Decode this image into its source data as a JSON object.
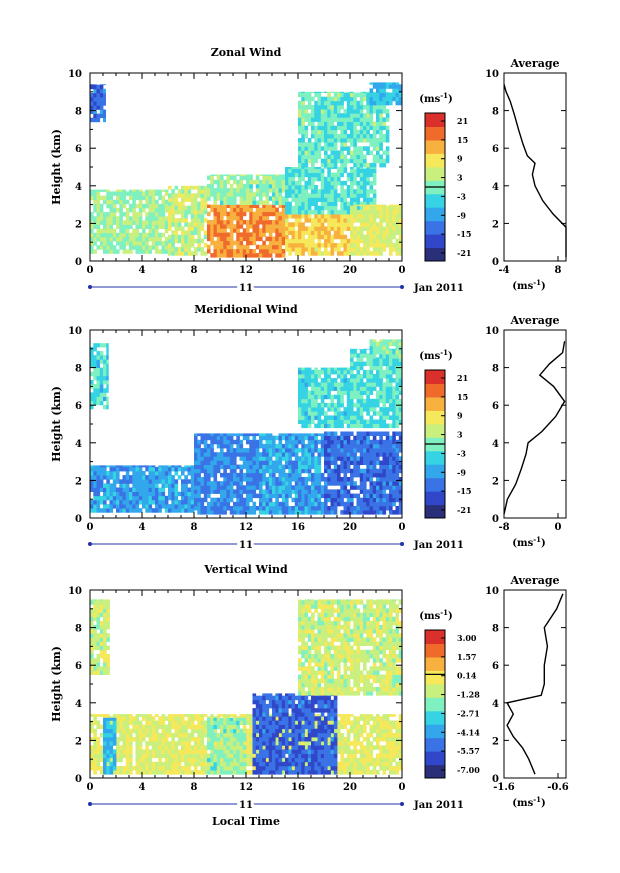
{
  "colors": {
    "scale": [
      "#2a2f7a",
      "#2f47c8",
      "#3a73e6",
      "#33a7ec",
      "#35d3e3",
      "#7ff0c0",
      "#c9f07e",
      "#f5e85a",
      "#f8b03e",
      "#f06a2c",
      "#d9302b"
    ]
  },
  "panels": [
    {
      "title": "Zonal Wind",
      "ylabel": "Height (km)",
      "date_label": "Jan 2011",
      "day_label": "11",
      "x_ticks": [
        "0",
        "4",
        "8",
        "12",
        "16",
        "20",
        "0"
      ],
      "y_ticks": [
        "0",
        "2",
        "4",
        "6",
        "8",
        "10"
      ],
      "colorbar": {
        "unit": "(ms",
        "unit_exp": "-1",
        "unit_close": ")",
        "labels": [
          "21",
          "15",
          "9",
          "3",
          "-3",
          "-9",
          "-15",
          "-21"
        ]
      },
      "average": {
        "title": "Average",
        "unit": "(ms",
        "unit_exp": "-1",
        "unit_close": ")",
        "x_ticks": [
          "-4",
          "8"
        ],
        "y_ticks": [
          "0",
          "2",
          "4",
          "6",
          "8",
          "10"
        ]
      }
    },
    {
      "title": "Meridional Wind",
      "ylabel": "Height (km)",
      "date_label": "Jan 2011",
      "day_label": "11",
      "x_ticks": [
        "0",
        "4",
        "8",
        "12",
        "16",
        "20",
        "0"
      ],
      "y_ticks": [
        "0",
        "2",
        "4",
        "6",
        "8",
        "10"
      ],
      "colorbar": {
        "unit": "(ms",
        "unit_exp": "-1",
        "unit_close": ")",
        "labels": [
          "21",
          "15",
          "9",
          "3",
          "-3",
          "-9",
          "-15",
          "-21"
        ]
      },
      "average": {
        "title": "Average",
        "unit": "(ms",
        "unit_exp": "-1",
        "unit_close": ")",
        "x_ticks": [
          "-8",
          "0"
        ],
        "y_ticks": [
          "0",
          "2",
          "4",
          "6",
          "8",
          "10"
        ]
      }
    },
    {
      "title": "Vertical Wind",
      "ylabel": "Height (km)",
      "xlabel": "Local Time",
      "date_label": "Jan 2011",
      "day_label": "11",
      "x_ticks": [
        "0",
        "4",
        "8",
        "12",
        "16",
        "20",
        "0"
      ],
      "y_ticks": [
        "0",
        "2",
        "4",
        "6",
        "8",
        "10"
      ],
      "colorbar": {
        "unit": "(ms",
        "unit_exp": "-1",
        "unit_close": ")",
        "labels": [
          "3.00",
          "1.57",
          "0.14",
          "-1.28",
          "-2.71",
          "-4.14",
          "-5.57",
          "-7.00"
        ]
      },
      "average": {
        "title": "Average",
        "unit": "(ms",
        "unit_exp": "-1",
        "unit_close": ")",
        "x_ticks": [
          "-1.6",
          "-0.6"
        ],
        "y_ticks": [
          "0",
          "2",
          "4",
          "6",
          "8",
          "10"
        ]
      }
    }
  ],
  "chart_data": [
    {
      "type": "heatmap",
      "title": "Zonal Wind",
      "xlabel": "",
      "ylabel": "Height (km)",
      "xlim": [
        0,
        24
      ],
      "ylim": [
        0,
        10
      ],
      "color_range": [
        -21,
        21
      ],
      "regions": [
        {
          "x": [
            0,
            1.2
          ],
          "y": [
            7.4,
            9.4
          ],
          "value": -12
        },
        {
          "x": [
            0,
            6
          ],
          "y": [
            0.4,
            3.8
          ],
          "value": 2
        },
        {
          "x": [
            6,
            9
          ],
          "y": [
            0.3,
            4
          ],
          "value": 4
        },
        {
          "x": [
            9,
            15
          ],
          "y": [
            0.2,
            3
          ],
          "value": 13
        },
        {
          "x": [
            15,
            20
          ],
          "y": [
            0.3,
            2.5
          ],
          "value": 9
        },
        {
          "x": [
            9,
            15
          ],
          "y": [
            3,
            4.6
          ],
          "value": 1
        },
        {
          "x": [
            15,
            22
          ],
          "y": [
            2.5,
            5
          ],
          "value": -2
        },
        {
          "x": [
            16,
            23
          ],
          "y": [
            5,
            9
          ],
          "value": -1
        },
        {
          "x": [
            20,
            24
          ],
          "y": [
            0.3,
            3
          ],
          "value": 6
        },
        {
          "x": [
            21.5,
            24
          ],
          "y": [
            8.3,
            9.5
          ],
          "value": -6
        }
      ],
      "average_profile": {
        "xlim": [
          -4,
          8
        ],
        "height": [
          0.2,
          1,
          1.8,
          2.5,
          3.2,
          4,
          4.6,
          5.2,
          5.6,
          6.2,
          7,
          7.8,
          8.5,
          9,
          9.4
        ],
        "value": [
          8,
          8,
          8,
          5.5,
          3.5,
          2,
          1.5,
          2,
          0.5,
          -0.3,
          -1.2,
          -2,
          -2.8,
          -3.6,
          -4
        ]
      }
    },
    {
      "type": "heatmap",
      "title": "Meridional Wind",
      "xlabel": "",
      "ylabel": "Height (km)",
      "xlim": [
        0,
        24
      ],
      "ylim": [
        0,
        10
      ],
      "color_range": [
        -21,
        21
      ],
      "regions": [
        {
          "x": [
            0,
            1.4
          ],
          "y": [
            5.8,
            9.3
          ],
          "value": -3
        },
        {
          "x": [
            0,
            8
          ],
          "y": [
            0.3,
            2.8
          ],
          "value": -8
        },
        {
          "x": [
            8,
            13
          ],
          "y": [
            0.2,
            4.5
          ],
          "value": -10
        },
        {
          "x": [
            13,
            18
          ],
          "y": [
            0.2,
            4.5
          ],
          "value": -8
        },
        {
          "x": [
            18,
            24
          ],
          "y": [
            0.2,
            4.6
          ],
          "value": -12
        },
        {
          "x": [
            16,
            20
          ],
          "y": [
            4.8,
            8
          ],
          "value": -3
        },
        {
          "x": [
            20,
            24
          ],
          "y": [
            4.8,
            9
          ],
          "value": -2
        },
        {
          "x": [
            21.5,
            24
          ],
          "y": [
            8.5,
            9.5
          ],
          "value": 0
        }
      ],
      "average_profile": {
        "xlim": [
          -8,
          1
        ],
        "height": [
          0.2,
          1,
          1.8,
          2.6,
          3.4,
          4,
          4.6,
          5.4,
          6.2,
          7,
          7.6,
          8.2,
          8.8,
          9.4
        ],
        "value": [
          -8,
          -7.5,
          -6.3,
          -5.5,
          -4.8,
          -4.5,
          -2.5,
          -0.5,
          0.8,
          -0.8,
          -2.8,
          -1.4,
          0.5,
          0.8
        ]
      }
    },
    {
      "type": "heatmap",
      "title": "Vertical Wind",
      "xlabel": "Local Time",
      "ylabel": "Height (km)",
      "xlim": [
        0,
        24
      ],
      "ylim": [
        0,
        10
      ],
      "color_range": [
        -7,
        3
      ],
      "regions": [
        {
          "x": [
            0,
            24
          ],
          "y": [
            0.2,
            3.4
          ],
          "value": -0.6
        },
        {
          "x": [
            12.5,
            19
          ],
          "y": [
            0.2,
            4.5
          ],
          "value": -5
        },
        {
          "x": [
            9,
            12
          ],
          "y": [
            0.2,
            3.2
          ],
          "value": -1.8
        },
        {
          "x": [
            1,
            2
          ],
          "y": [
            0.2,
            3.2
          ],
          "value": -3.5
        },
        {
          "x": [
            16,
            24
          ],
          "y": [
            4.4,
            9.5
          ],
          "value": -1
        },
        {
          "x": [
            0,
            1.5
          ],
          "y": [
            5.5,
            9.5
          ],
          "value": -1
        }
      ],
      "average_profile": {
        "xlim": [
          -1.6,
          -0.6
        ],
        "height": [
          0.2,
          1,
          1.6,
          2.2,
          2.8,
          3.4,
          4,
          4.4,
          5,
          6,
          7,
          8,
          9,
          9.8
        ],
        "value": [
          -1.1,
          -1.2,
          -1.3,
          -1.45,
          -1.55,
          -1.45,
          -1.55,
          -1.0,
          -0.95,
          -0.95,
          -0.9,
          -0.95,
          -0.75,
          -0.65
        ]
      }
    }
  ]
}
